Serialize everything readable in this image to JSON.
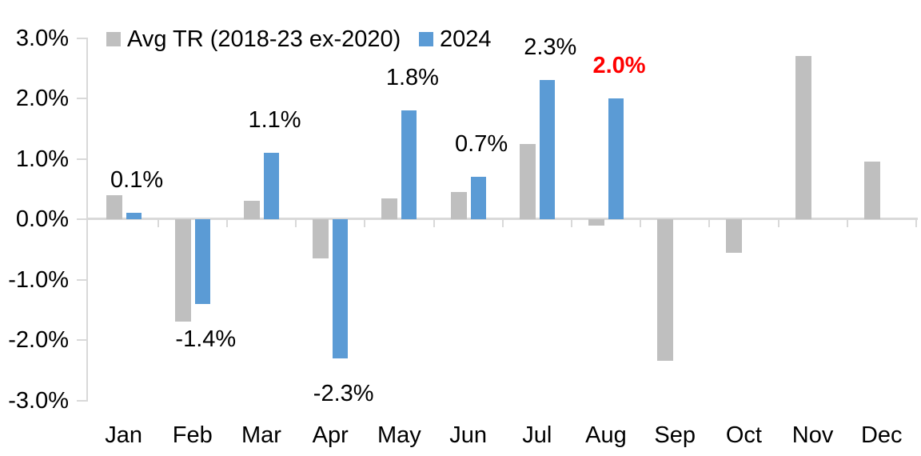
{
  "legend": {
    "avg_label": "Avg TR (2018-23 ex-2020)",
    "y2024_label": "2024"
  },
  "colors": {
    "avg_series": "#BFBFBF",
    "y2024_series": "#5B9BD5",
    "axis_line": "#D9D9D9",
    "label_text": "#000000",
    "highlight_label": "#FF0000"
  },
  "chart_data": {
    "type": "bar",
    "title": "",
    "xlabel": "",
    "ylabel": "",
    "categories": [
      "Jan",
      "Feb",
      "Mar",
      "Apr",
      "May",
      "Jun",
      "Jul",
      "Aug",
      "Sep",
      "Oct",
      "Nov",
      "Dec"
    ],
    "series": [
      {
        "name": "Avg TR (2018-23 ex-2020)",
        "color": "#BFBFBF",
        "values": [
          0.4,
          -1.7,
          0.3,
          -0.65,
          0.35,
          0.45,
          1.25,
          -0.1,
          -2.35,
          -0.55,
          2.7,
          0.95
        ]
      },
      {
        "name": "2024",
        "color": "#5B9BD5",
        "values": [
          0.1,
          -1.4,
          1.1,
          -2.3,
          1.8,
          0.7,
          2.3,
          2.0
        ],
        "data_labels": [
          {
            "text": "0.1%",
            "color": "#000000",
            "bold": false
          },
          {
            "text": "-1.4%",
            "color": "#000000",
            "bold": false
          },
          {
            "text": "1.1%",
            "color": "#000000",
            "bold": false
          },
          {
            "text": "-2.3%",
            "color": "#000000",
            "bold": false
          },
          {
            "text": "1.8%",
            "color": "#000000",
            "bold": false
          },
          {
            "text": "0.7%",
            "color": "#000000",
            "bold": false
          },
          {
            "text": "2.3%",
            "color": "#000000",
            "bold": false
          },
          {
            "text": "2.0%",
            "color": "#FF0000",
            "bold": true
          }
        ]
      }
    ],
    "y_axis": {
      "unit": "%",
      "min": -3.0,
      "max": 3.0,
      "tick_values": [
        3,
        2,
        1,
        0,
        -1,
        -2,
        -3
      ],
      "tick_labels": [
        "3.0%",
        "2.0%",
        "1.0%",
        "0.0%",
        "-1.0%",
        "-2.0%",
        "-3.0%"
      ]
    },
    "legend_position": "top",
    "grid": false
  }
}
